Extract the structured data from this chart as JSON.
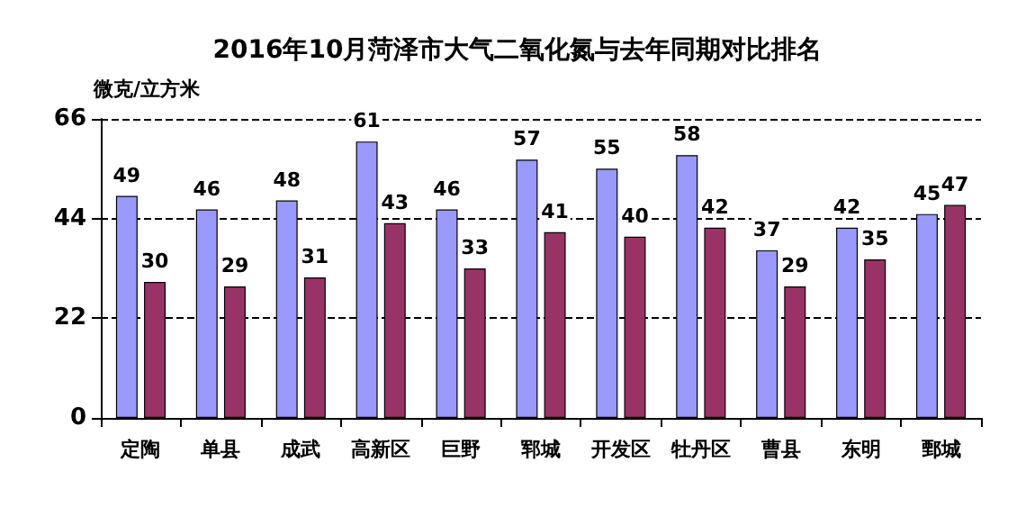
{
  "chart_data": {
    "type": "bar",
    "title": "2016年10月菏泽市大气二氧化氮与去年同期对比排名",
    "ylabel": "微克/立方米",
    "categories": [
      "定陶",
      "单县",
      "成武",
      "高新区",
      "巨野",
      "郓城",
      "开发区",
      "牡丹区",
      "曹县",
      "东明",
      "鄄城"
    ],
    "series": [
      {
        "color": "#9999ff",
        "values": [
          49,
          46,
          48,
          61,
          46,
          57,
          55,
          58,
          37,
          42,
          45
        ]
      },
      {
        "color": "#993366",
        "values": [
          30,
          29,
          31,
          43,
          33,
          41,
          40,
          42,
          29,
          35,
          47
        ]
      }
    ],
    "ylim": [
      0,
      66
    ],
    "yticks": [
      0,
      22,
      44,
      66
    ],
    "grid": "y",
    "data_labels": true
  }
}
